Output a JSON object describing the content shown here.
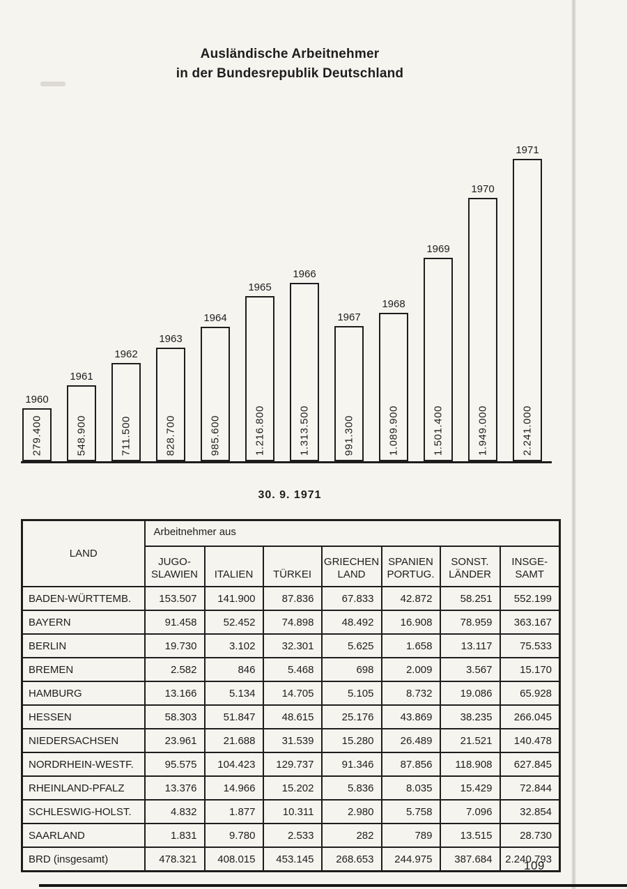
{
  "page": {
    "title_line1": "Ausländische Arbeitnehmer",
    "title_line2": "in der Bundesrepublik Deutschland",
    "date_label": "30. 9. 1971",
    "page_number": "109",
    "ink_color": "#1d1d1d",
    "paper_color": "#f5f4ef"
  },
  "chart_data": {
    "type": "bar",
    "title": "Ausländische Arbeitnehmer in der Bundesrepublik Deutschland",
    "categories": [
      "1960",
      "1961",
      "1962",
      "1963",
      "1964",
      "1965",
      "1966",
      "1967",
      "1968",
      "1969",
      "1970",
      "1971"
    ],
    "values": [
      279400,
      548900,
      711500,
      828700,
      985600,
      1216800,
      1313500,
      991300,
      1089900,
      1501400,
      1949000,
      2241000
    ],
    "value_labels": [
      "279.400",
      "548.900",
      "711.500",
      "828.700",
      "985.600",
      "1.216.800",
      "1.313.500",
      "991.300",
      "1.089.900",
      "1.501.400",
      "1.949.000",
      "2.241.000"
    ],
    "xlabel": "",
    "ylabel": "",
    "ylim": [
      0,
      2241000
    ],
    "grid": "off",
    "legend": "none",
    "bar_fill": "#f6f5f0",
    "bar_outline": "#1d1d1d",
    "annotation": "Year labels above bars, value labels rotated vertically inside bars"
  },
  "table": {
    "corner_header": "LAND",
    "group_header": "Arbeitnehmer aus",
    "column_headers": [
      [
        "JUGO-",
        "SLAWIEN"
      ],
      [
        "ITALIEN"
      ],
      [
        "TÜRKEI"
      ],
      [
        "GRIECHEN",
        "LAND"
      ],
      [
        "SPANIEN",
        "PORTUG."
      ],
      [
        "SONST.",
        "LÄNDER"
      ],
      [
        "INSGE-",
        "SAMT"
      ]
    ],
    "rows": [
      {
        "land": "BADEN-WÜRTTEMB.",
        "values": [
          "153.507",
          "141.900",
          "87.836",
          "67.833",
          "42.872",
          "58.251",
          "552.199"
        ]
      },
      {
        "land": "BAYERN",
        "values": [
          "91.458",
          "52.452",
          "74.898",
          "48.492",
          "16.908",
          "78.959",
          "363.167"
        ]
      },
      {
        "land": "BERLIN",
        "values": [
          "19.730",
          "3.102",
          "32.301",
          "5.625",
          "1.658",
          "13.117",
          "75.533"
        ]
      },
      {
        "land": "BREMEN",
        "values": [
          "2.582",
          "846",
          "5.468",
          "698",
          "2.009",
          "3.567",
          "15.170"
        ]
      },
      {
        "land": "HAMBURG",
        "values": [
          "13.166",
          "5.134",
          "14.705",
          "5.105",
          "8.732",
          "19.086",
          "65.928"
        ]
      },
      {
        "land": "HESSEN",
        "values": [
          "58.303",
          "51.847",
          "48.615",
          "25.176",
          "43.869",
          "38.235",
          "266.045"
        ]
      },
      {
        "land": "NIEDERSACHSEN",
        "values": [
          "23.961",
          "21.688",
          "31.539",
          "15.280",
          "26.489",
          "21.521",
          "140.478"
        ]
      },
      {
        "land": "NORDRHEIN-WESTF.",
        "values": [
          "95.575",
          "104.423",
          "129.737",
          "91.346",
          "87.856",
          "118.908",
          "627.845"
        ]
      },
      {
        "land": "RHEINLAND-PFALZ",
        "values": [
          "13.376",
          "14.966",
          "15.202",
          "5.836",
          "8.035",
          "15.429",
          "72.844"
        ]
      },
      {
        "land": "SCHLESWIG-HOLST.",
        "values": [
          "4.832",
          "1.877",
          "10.311",
          "2.980",
          "5.758",
          "7.096",
          "32.854"
        ]
      },
      {
        "land": "SAARLAND",
        "values": [
          "1.831",
          "9.780",
          "2.533",
          "282",
          "789",
          "13.515",
          "28.730"
        ]
      },
      {
        "land": "BRD (insgesamt)",
        "values": [
          "478.321",
          "408.015",
          "453.145",
          "268.653",
          "244.975",
          "387.684",
          "2.240.793"
        ]
      }
    ]
  }
}
